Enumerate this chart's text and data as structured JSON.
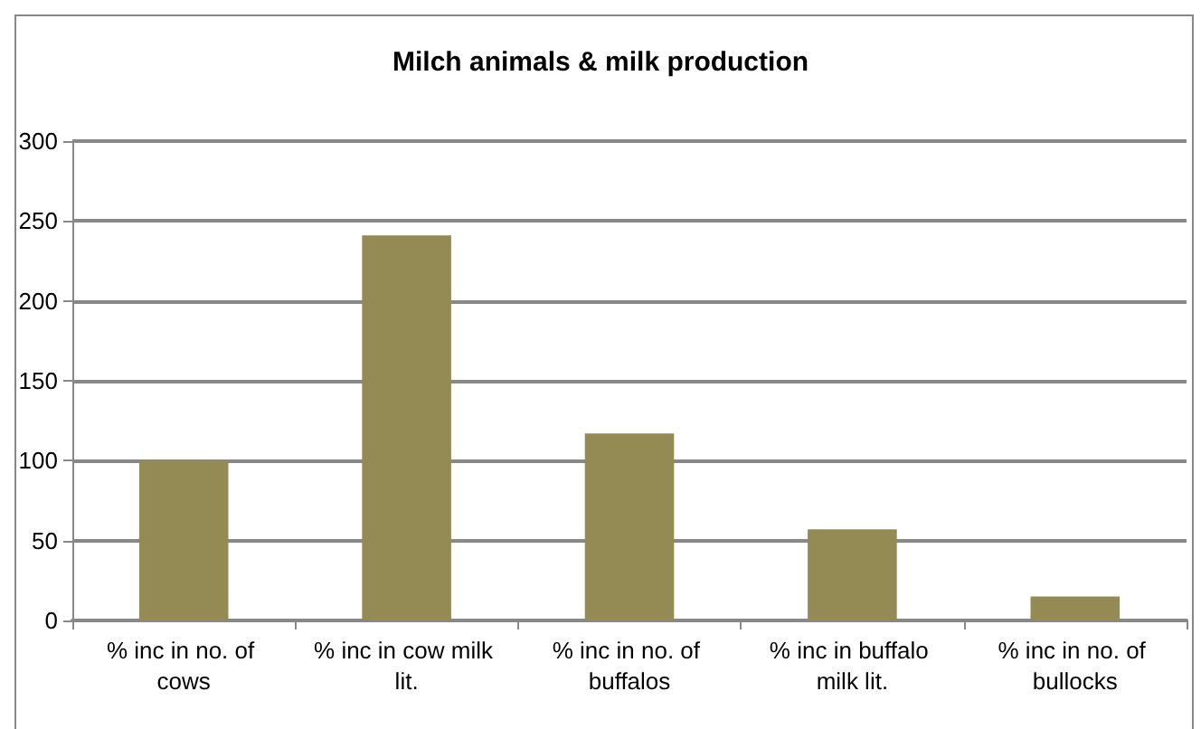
{
  "chart_data": {
    "type": "bar",
    "title": "Milch animals & milk production",
    "categories": [
      "% inc in no. of cows",
      "% inc in cow milk lit.",
      "% inc in no. of buffalos",
      "% inc in buffalo milk lit.",
      "% inc in no. of bullocks"
    ],
    "values": [
      100,
      241,
      117,
      57,
      15
    ],
    "color": "#948a54",
    "ylim": [
      0,
      300
    ],
    "yticks": [
      0,
      50,
      100,
      150,
      200,
      250,
      300
    ],
    "grid": "y"
  }
}
